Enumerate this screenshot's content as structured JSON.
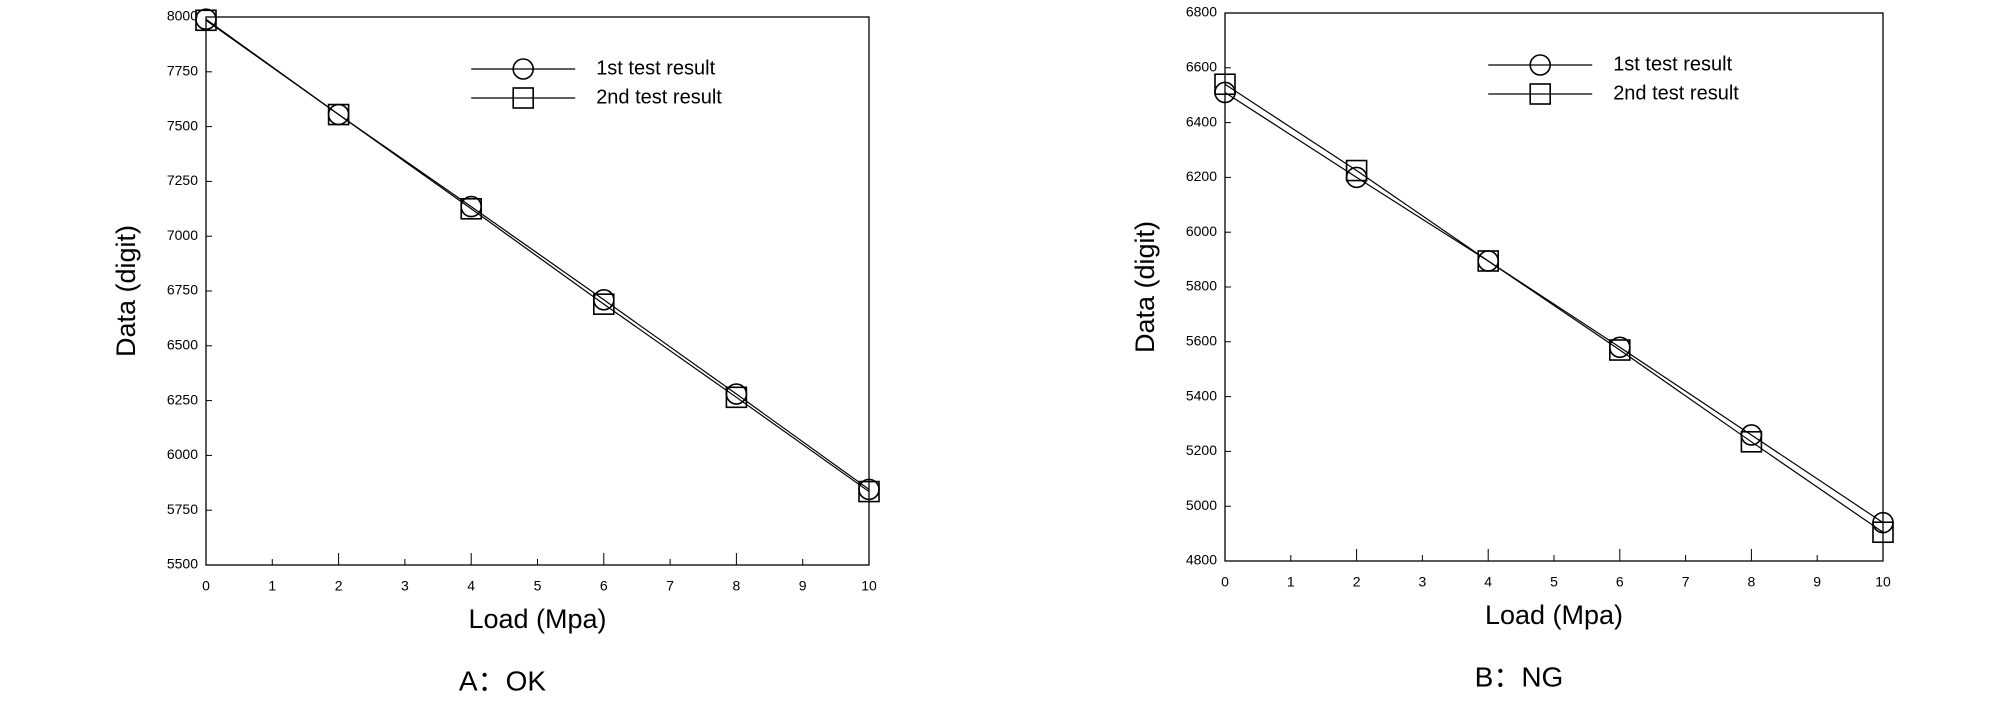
{
  "chart_data": [
    {
      "type": "line",
      "caption": "A：OK",
      "xlabel": "Load (Mpa)",
      "ylabel": "Data (digit)",
      "x": [
        0,
        2,
        4,
        6,
        8,
        10
      ],
      "series": [
        {
          "name": "1st test result",
          "color": "#000000",
          "marker": "circle",
          "values": [
            7990,
            7555,
            7135,
            6710,
            6280,
            5845
          ]
        },
        {
          "name": "2nd test result",
          "color": "#000000",
          "marker": "square",
          "values": [
            7985,
            7555,
            7125,
            6690,
            6265,
            5835
          ]
        }
      ],
      "xlim": [
        0,
        10
      ],
      "xticks": [
        0,
        1,
        2,
        3,
        4,
        5,
        6,
        7,
        8,
        9,
        10
      ],
      "ylim": [
        5500,
        8000
      ],
      "yticks": [
        5500,
        5750,
        6000,
        6250,
        6500,
        6750,
        7000,
        7250,
        7500,
        7750,
        8000
      ],
      "legend": "upper center",
      "grid": false
    },
    {
      "type": "line",
      "caption": "B：NG",
      "xlabel": "Load (Mpa)",
      "ylabel": "Data (digit)",
      "x": [
        0,
        2,
        4,
        6,
        8,
        10
      ],
      "series": [
        {
          "name": "1st test result",
          "color": "#000000",
          "marker": "circle",
          "values": [
            6510,
            6200,
            5895,
            5580,
            5260,
            4940
          ]
        },
        {
          "name": "2nd test result",
          "color": "#000000",
          "marker": "square",
          "values": [
            6540,
            6225,
            5895,
            5570,
            5235,
            4905
          ]
        }
      ],
      "xlim": [
        0,
        10
      ],
      "xticks": [
        0,
        1,
        2,
        3,
        4,
        5,
        6,
        7,
        8,
        9,
        10
      ],
      "ylim": [
        4800,
        6800
      ],
      "yticks": [
        4800,
        5000,
        5200,
        5400,
        5600,
        5800,
        6000,
        6200,
        6400,
        6600,
        6800
      ],
      "legend": "upper center",
      "grid": false
    }
  ]
}
